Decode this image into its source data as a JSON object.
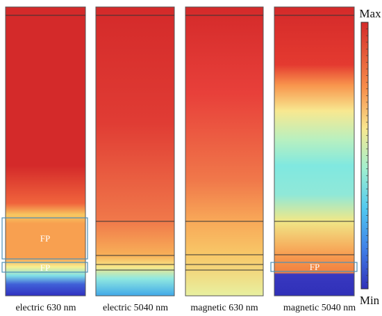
{
  "panels": [
    {
      "label": "electric 630 nm",
      "fp_labels": [
        "FP",
        "FP"
      ]
    },
    {
      "label": "electric 5040 nm"
    },
    {
      "label": "magnetic 630 nm"
    },
    {
      "label": "magnetic 5040 nm",
      "fp_labels": [
        "FP"
      ]
    }
  ],
  "colorbar": {
    "max_label": "Max",
    "min_label": "Min"
  }
}
